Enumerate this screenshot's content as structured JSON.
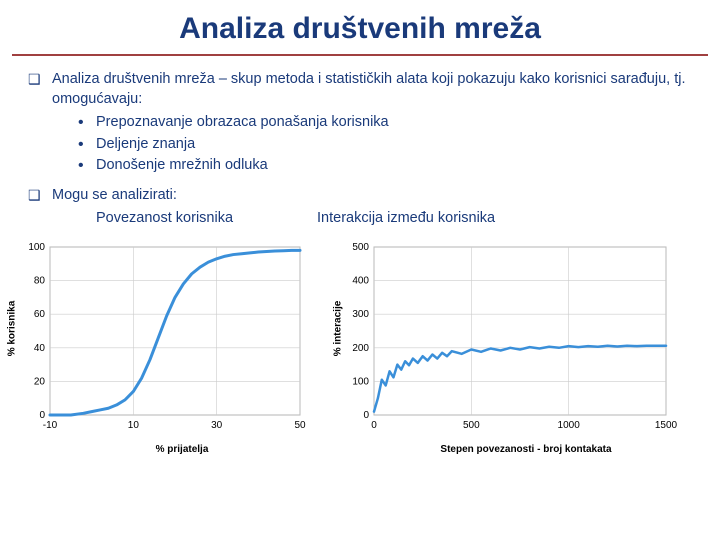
{
  "title": "Analiza društvenih mreža",
  "bullets": {
    "main1": "Analiza društvenih mreža – skup metoda i statističkih alata koji pokazuju kako korisnici sarađuju, tj. omogućavaju:",
    "sub1": "Prepoznavanje obrazaca ponašanja korisnika",
    "sub2": "Deljenje znanja",
    "sub3": "Donošenje mrežnih odluka",
    "main2": "Mogu se analizirati:",
    "col1": "Povezanost korisnika",
    "col2": "Interakcija između korisnika"
  },
  "chart1": {
    "type": "line",
    "xlabel": "% prijatelja",
    "ylabel": "% korisnika",
    "xlim": [
      -10,
      50
    ],
    "ylim": [
      0,
      100
    ],
    "xticks": [
      -10,
      10,
      30,
      50
    ],
    "yticks": [
      0,
      20,
      40,
      60,
      80,
      100
    ],
    "line_color": "#3a8fd9",
    "line_width": 3,
    "grid_color": "#cccccc",
    "background_color": "#ffffff",
    "tick_fontsize": 10,
    "label_fontsize": 10,
    "data": [
      [
        -10,
        0
      ],
      [
        -5,
        0
      ],
      [
        -2,
        1
      ],
      [
        0,
        2
      ],
      [
        2,
        3
      ],
      [
        4,
        4
      ],
      [
        6,
        6
      ],
      [
        8,
        9
      ],
      [
        10,
        14
      ],
      [
        12,
        22
      ],
      [
        14,
        33
      ],
      [
        16,
        46
      ],
      [
        18,
        59
      ],
      [
        20,
        70
      ],
      [
        22,
        78
      ],
      [
        24,
        84
      ],
      [
        26,
        88
      ],
      [
        28,
        91
      ],
      [
        30,
        93
      ],
      [
        32,
        94.5
      ],
      [
        34,
        95.5
      ],
      [
        36,
        96
      ],
      [
        38,
        96.5
      ],
      [
        40,
        97
      ],
      [
        42,
        97.3
      ],
      [
        44,
        97.6
      ],
      [
        46,
        97.8
      ],
      [
        48,
        98
      ],
      [
        50,
        98
      ]
    ]
  },
  "chart2": {
    "type": "line",
    "xlabel": "Stepen povezanosti - broj kontakata",
    "ylabel": "% interacije",
    "xlim": [
      0,
      1500
    ],
    "ylim": [
      0,
      500
    ],
    "xticks": [
      0,
      500,
      1000,
      1500
    ],
    "yticks": [
      0,
      100,
      200,
      300,
      400,
      500
    ],
    "line_color": "#3a8fd9",
    "line_width": 2.5,
    "grid_color": "#cccccc",
    "background_color": "#ffffff",
    "tick_fontsize": 10,
    "label_fontsize": 10,
    "data": [
      [
        0,
        10
      ],
      [
        20,
        50
      ],
      [
        40,
        105
      ],
      [
        60,
        88
      ],
      [
        80,
        130
      ],
      [
        100,
        112
      ],
      [
        120,
        150
      ],
      [
        140,
        135
      ],
      [
        160,
        160
      ],
      [
        180,
        148
      ],
      [
        200,
        168
      ],
      [
        225,
        155
      ],
      [
        250,
        175
      ],
      [
        275,
        162
      ],
      [
        300,
        180
      ],
      [
        325,
        168
      ],
      [
        350,
        185
      ],
      [
        375,
        175
      ],
      [
        400,
        190
      ],
      [
        450,
        182
      ],
      [
        500,
        195
      ],
      [
        550,
        188
      ],
      [
        600,
        198
      ],
      [
        650,
        192
      ],
      [
        700,
        200
      ],
      [
        750,
        195
      ],
      [
        800,
        202
      ],
      [
        850,
        198
      ],
      [
        900,
        203
      ],
      [
        950,
        200
      ],
      [
        1000,
        205
      ],
      [
        1050,
        202
      ],
      [
        1100,
        205
      ],
      [
        1150,
        203
      ],
      [
        1200,
        206
      ],
      [
        1250,
        204
      ],
      [
        1300,
        206
      ],
      [
        1350,
        205
      ],
      [
        1400,
        206
      ],
      [
        1450,
        206
      ],
      [
        1500,
        206
      ]
    ]
  }
}
